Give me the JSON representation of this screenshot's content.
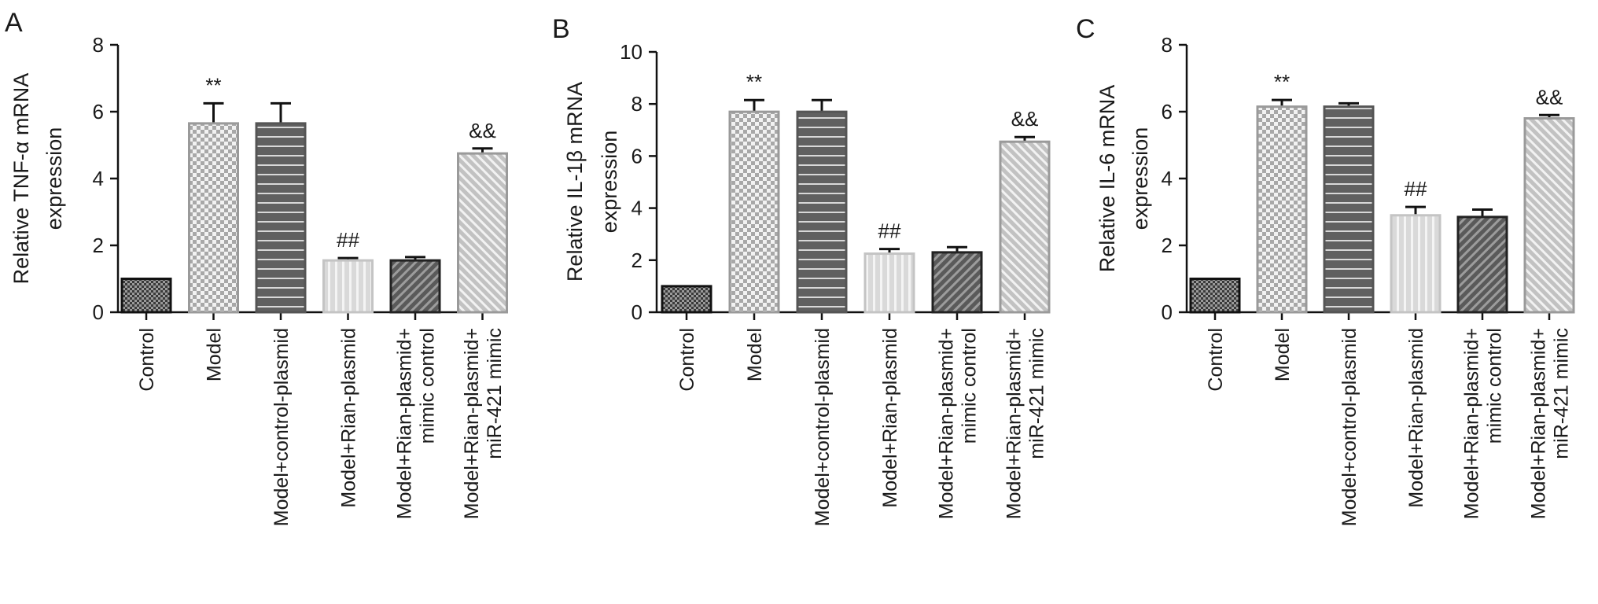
{
  "chart_data": [
    {
      "type": "bar",
      "panel": "A",
      "ylabel": [
        "Relative TNF-α mRNA",
        "expression"
      ],
      "ylim": [
        0,
        8
      ],
      "yticks": [
        0,
        2,
        4,
        6,
        8
      ],
      "categories": [
        "Control",
        "Model",
        "Model+control-plasmid",
        "Model+Rian-plasmid",
        [
          "Model+Rian-plasmid+",
          "mimic control"
        ],
        [
          "Model+Rian-plasmid+",
          "miR-421 mimic"
        ]
      ],
      "values": [
        1.0,
        5.65,
        5.65,
        1.55,
        1.55,
        4.75
      ],
      "errors": [
        0.0,
        0.6,
        0.6,
        0.07,
        0.1,
        0.15
      ],
      "annotations": [
        "",
        "**",
        "",
        "##",
        "",
        "&&"
      ]
    },
    {
      "type": "bar",
      "panel": "B",
      "ylabel": [
        "Relative IL-1β mRNA",
        "expression"
      ],
      "ylim": [
        0,
        10
      ],
      "yticks": [
        0,
        2,
        4,
        6,
        8,
        10
      ],
      "categories": [
        "Control",
        "Model",
        "Model+control-plasmid",
        "Model+Rian-plasmid",
        [
          "Model+Rian-plasmid+",
          "mimic control"
        ],
        [
          "Model+Rian-plasmid+",
          "miR-421 mimic"
        ]
      ],
      "values": [
        1.0,
        7.7,
        7.7,
        2.25,
        2.3,
        6.55
      ],
      "errors": [
        0.0,
        0.45,
        0.45,
        0.18,
        0.2,
        0.18
      ],
      "annotations": [
        "",
        "**",
        "",
        "##",
        "",
        "&&"
      ]
    },
    {
      "type": "bar",
      "panel": "C",
      "ylabel": [
        "Relative IL-6 mRNA",
        "expression"
      ],
      "ylim": [
        0,
        8
      ],
      "yticks": [
        0,
        2,
        4,
        6,
        8
      ],
      "categories": [
        "Control",
        "Model",
        "Model+control-plasmid",
        "Model+Rian-plasmid",
        [
          "Model+Rian-plasmid+",
          "mimic control"
        ],
        [
          "Model+Rian-plasmid+",
          "miR-421 mimic"
        ]
      ],
      "values": [
        1.0,
        6.15,
        6.15,
        2.9,
        2.85,
        5.8
      ],
      "errors": [
        0.0,
        0.2,
        0.1,
        0.25,
        0.22,
        0.1
      ],
      "annotations": [
        "",
        "**",
        "",
        "##",
        "",
        "&&"
      ]
    }
  ],
  "bar_styles": [
    {
      "pattern": "checker-dark",
      "fill": "#6e6e6e",
      "stroke": "#111111"
    },
    {
      "pattern": "checker-light",
      "fill": "#bdbdbd",
      "stroke": "#9a9a9a"
    },
    {
      "pattern": "hlines",
      "fill": "#6a6a6a",
      "stroke": "#555555"
    },
    {
      "pattern": "vlines",
      "fill": "#d2d2d2",
      "stroke": "#c4c4c4"
    },
    {
      "pattern": "diag-dark",
      "fill": "#707070",
      "stroke": "#222222"
    },
    {
      "pattern": "diag-light",
      "fill": "#bdbdbd",
      "stroke": "#9a9a9a"
    }
  ]
}
